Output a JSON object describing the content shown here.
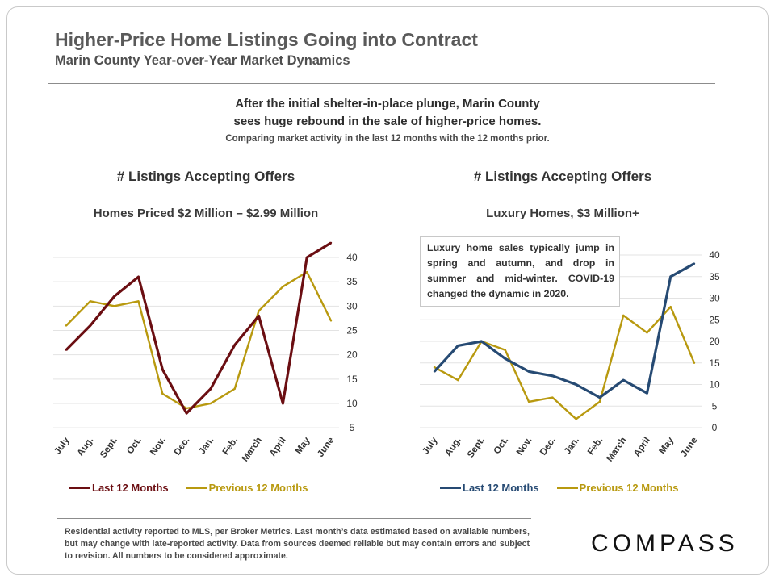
{
  "title": "Higher-Price Home Listings Going into Contract",
  "subtitle": "Marin County Year-over-Year  Market  Dynamics",
  "headline": {
    "line1": "After the initial shelter-in-place plunge, Marin County",
    "line2": "sees huge rebound in the sale of higher-price homes.",
    "note": "Comparing market activity in the last 12 months with the 12 months prior."
  },
  "chart_data": [
    {
      "type": "line",
      "title": "# Listings  Accepting  Offers",
      "subtitle": "Homes Priced $2 Million – $2.99 Million",
      "categories": [
        "July",
        "Aug.",
        "Sept.",
        "Oct.",
        "Nov.",
        "Dec.",
        "Jan.",
        "Feb.",
        "March",
        "April",
        "May",
        "June"
      ],
      "yticks": [
        5,
        10,
        15,
        20,
        25,
        30,
        35,
        40
      ],
      "ylim": [
        5,
        42
      ],
      "grid": true,
      "series": [
        {
          "name": "Last 12 Months",
          "color": "#6b0e12",
          "values": [
            21,
            26,
            32,
            36,
            17,
            8,
            13,
            22,
            28,
            10,
            40,
            43
          ]
        },
        {
          "name": "Previous 12 Months",
          "color": "#b8990f",
          "values": [
            26,
            31,
            30,
            31,
            12,
            9,
            10,
            13,
            29,
            34,
            37,
            27
          ]
        }
      ]
    },
    {
      "type": "line",
      "title": "# Listings  Accepting  Offers",
      "subtitle": "Luxury Homes, $3 Million+",
      "categories": [
        "July",
        "Aug.",
        "Sept.",
        "Oct.",
        "Nov.",
        "Dec.",
        "Jan.",
        "Feb.",
        "March",
        "April",
        "May",
        "June"
      ],
      "yticks": [
        0,
        5,
        10,
        15,
        20,
        25,
        30,
        35,
        40
      ],
      "ylim": [
        0,
        40
      ],
      "grid": true,
      "series": [
        {
          "name": "Last 12 Months",
          "color": "#264a73",
          "values": [
            13,
            19,
            20,
            16,
            13,
            12,
            10,
            7,
            11,
            8,
            35,
            38
          ]
        },
        {
          "name": "Previous 12 Months",
          "color": "#b8990f",
          "values": [
            14,
            11,
            20,
            18,
            6,
            7,
            2,
            6,
            26,
            22,
            28,
            15
          ]
        }
      ],
      "annotation": "Luxury home sales typically jump in spring and autumn, and drop in summer and mid-winter. COVID-19 changed the dynamic in 2020."
    }
  ],
  "footer": "Residential activity reported to MLS, per Broker Metrics. Last month’s data estimated based on available numbers, but may change with late-reported activity. Data from sources deemed reliable but may contain errors and subject to revision. All numbers to be considered approximate.",
  "logo_text": "COMPASS"
}
